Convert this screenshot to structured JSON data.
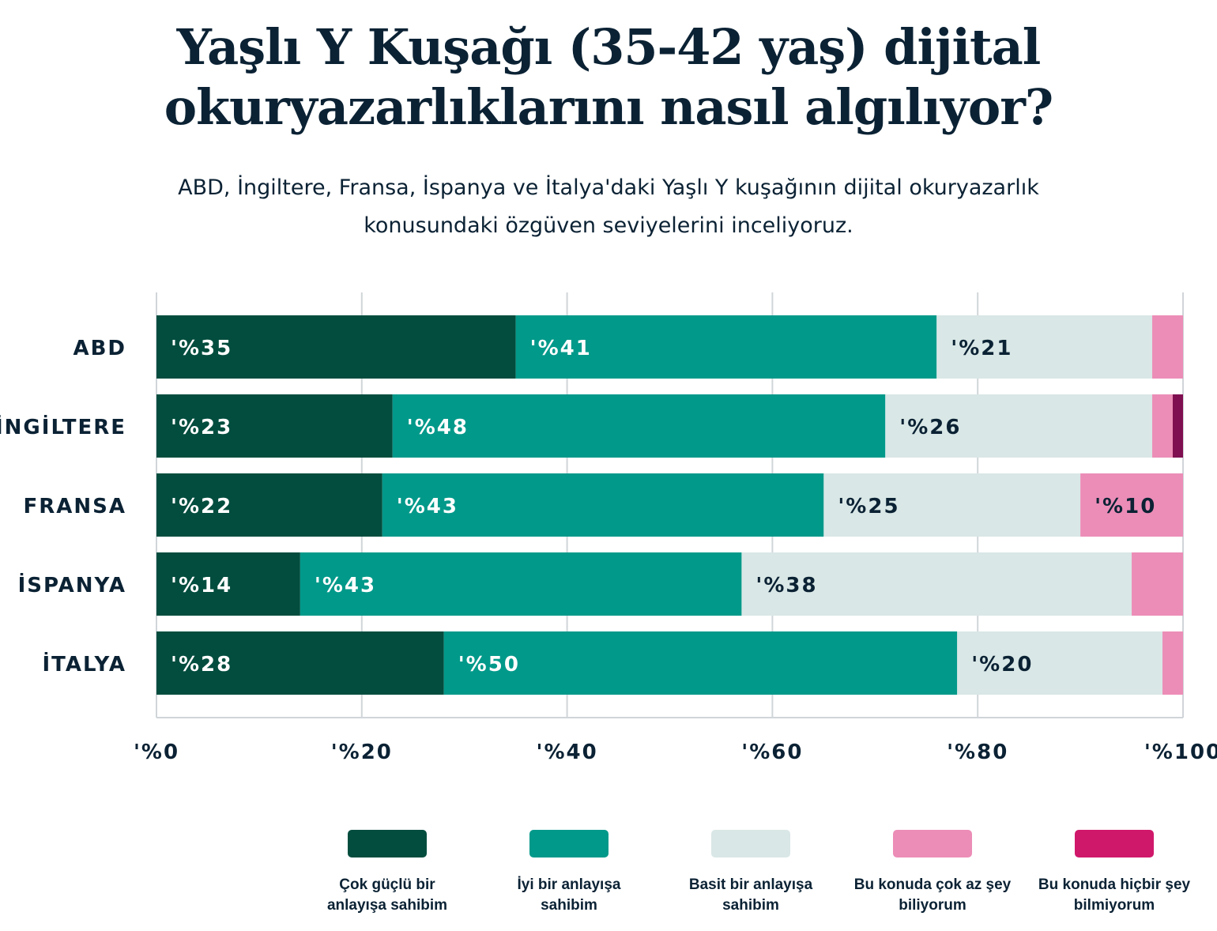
{
  "chart_data": {
    "type": "bar",
    "orientation": "horizontal",
    "stacked": true,
    "title": "Yaşlı Y Kuşağı (35-42 yaş) dijital okuryazarlıklarını nasıl algılıyor?",
    "subtitle": "ABD, İngiltere, Fransa, İspanya ve İtalya'daki Yaşlı Y kuşağının dijital okuryazarlık konusundaki özgüven seviyelerini inceliyoruz.",
    "categories": [
      "ABD",
      "İNGİLTERE",
      "FRANSA",
      "İSPANYA",
      "İTALYA"
    ],
    "xlim": [
      0,
      100
    ],
    "xticks": [
      "'%0",
      "'%20",
      "'%40",
      "'%60",
      "'%80",
      "'%100"
    ],
    "grid": true,
    "legend_position": "bottom",
    "series": [
      {
        "name": "Çok güçlü bir anlayışa sahibim",
        "color": "#024d3e",
        "label_color": "#ffffff",
        "values": [
          35,
          23,
          22,
          14,
          28
        ],
        "labels": [
          "'%35",
          "'%23",
          "'%22",
          "'%14",
          "'%28"
        ]
      },
      {
        "name": "İyi bir anlayışa sahibim",
        "color": "#01998a",
        "label_color": "#ffffff",
        "values": [
          41,
          48,
          43,
          43,
          50
        ],
        "labels": [
          "'%41",
          "'%48",
          "'%43",
          "'%43",
          "'%50"
        ]
      },
      {
        "name": "Basit bir anlayışa sahibim",
        "color": "#d9e7e6",
        "label_color": "#0b2234",
        "values": [
          21,
          26,
          25,
          38,
          20
        ],
        "labels": [
          "'%21",
          "'%26",
          "'%25",
          "'%38",
          "'%20"
        ]
      },
      {
        "name": "Bu konuda çok az şey biliyorum",
        "color": "#ec8db7",
        "label_color": "#0b2234",
        "values": [
          3,
          2,
          10,
          5,
          2
        ],
        "labels": [
          "",
          "",
          "'%10",
          "",
          ""
        ]
      },
      {
        "name": "Bu konuda hiçbir şey bilmiyorum",
        "color": "#d0186b",
        "bar_color": "#7f0f50",
        "label_color": "#ffffff",
        "values": [
          0,
          1,
          0,
          0,
          0
        ],
        "labels": [
          "",
          "",
          "",
          "",
          ""
        ]
      }
    ]
  }
}
